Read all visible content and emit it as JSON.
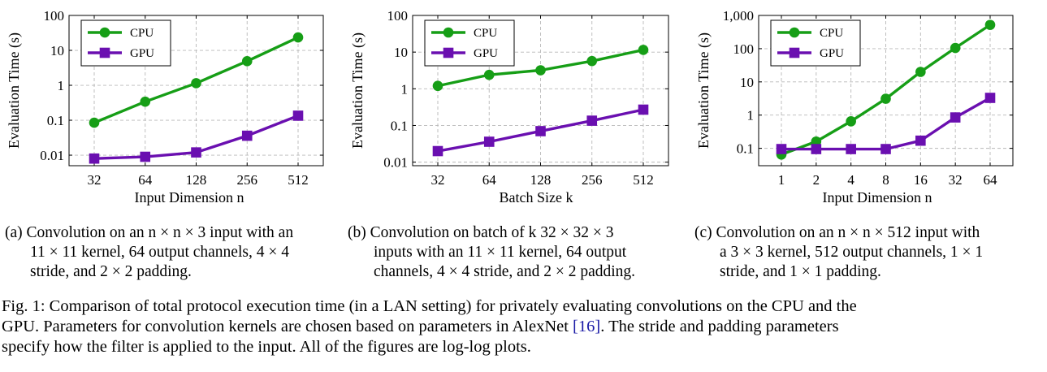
{
  "colors": {
    "cpu": "#169e16",
    "gpu": "#6a0fb0",
    "grid": "#b8b8b8"
  },
  "chart_data": [
    {
      "type": "line",
      "scale": "log-log",
      "xlabel": "Input Dimension n",
      "ylabel": "Evaluation Time (s)",
      "x": [
        32,
        64,
        128,
        256,
        512
      ],
      "x_ticks": [
        "32",
        "64",
        "128",
        "256",
        "512"
      ],
      "ylim": [
        0.005,
        100
      ],
      "y_ticks": [
        "0.01",
        "0.1",
        "1",
        "10",
        "100"
      ],
      "grid": true,
      "legend": "top-left",
      "series": [
        {
          "name": "CPU",
          "marker": "circle",
          "values": [
            0.085,
            0.34,
            1.15,
            4.9,
            23.5
          ]
        },
        {
          "name": "GPU",
          "marker": "square",
          "values": [
            0.008,
            0.009,
            0.012,
            0.036,
            0.135
          ]
        }
      ]
    },
    {
      "type": "line",
      "scale": "log-log",
      "xlabel": "Batch Size k",
      "ylabel": "Evaluation Time (s)",
      "x": [
        32,
        64,
        128,
        256,
        512
      ],
      "x_ticks": [
        "32",
        "64",
        "128",
        "256",
        "512"
      ],
      "ylim": [
        0.008,
        100
      ],
      "y_ticks": [
        "0.01",
        "0.1",
        "1",
        "10",
        "100"
      ],
      "grid": true,
      "legend": "top-left",
      "series": [
        {
          "name": "CPU",
          "marker": "circle",
          "values": [
            1.2,
            2.4,
            3.2,
            5.7,
            11.5
          ]
        },
        {
          "name": "GPU",
          "marker": "square",
          "values": [
            0.02,
            0.036,
            0.07,
            0.135,
            0.27
          ]
        }
      ]
    },
    {
      "type": "line",
      "scale": "log-log",
      "xlabel": "Input Dimension n",
      "ylabel": "Evaluation Time (s)",
      "x": [
        1,
        2,
        4,
        8,
        16,
        32,
        64
      ],
      "x_ticks": [
        "1",
        "2",
        "4",
        "8",
        "16",
        "32",
        "64"
      ],
      "ylim": [
        0.03,
        1000
      ],
      "y_ticks": [
        "0.1",
        "1",
        "10",
        "100",
        "1,000"
      ],
      "grid": true,
      "legend": "top-left",
      "series": [
        {
          "name": "CPU",
          "marker": "circle",
          "values": [
            0.065,
            0.16,
            0.65,
            3.1,
            20,
            105,
            520
          ]
        },
        {
          "name": "GPU",
          "marker": "square",
          "values": [
            0.095,
            0.095,
            0.095,
            0.095,
            0.17,
            0.85,
            3.3
          ]
        }
      ]
    }
  ],
  "subcaptions": [
    {
      "lines": [
        "(a) Convolution on an n × n × 3 input with an",
        "11 × 11 kernel, 64 output channels, 4 × 4",
        "stride, and 2 × 2 padding."
      ]
    },
    {
      "lines": [
        "(b) Convolution on batch of  k  32 × 32 × 3",
        "inputs with an 11 × 11 kernel, 64 output",
        "channels, 4 × 4 stride, and 2 × 2 padding."
      ]
    },
    {
      "lines": [
        "(c) Convolution on an n × n × 512 input with",
        "a 3 × 3 kernel, 512 output channels, 1 × 1",
        "stride, and 1 × 1 padding."
      ]
    }
  ],
  "figure_caption": {
    "line1": "Fig. 1: Comparison of total protocol execution time (in a LAN setting) for privately evaluating convolutions on the CPU and the",
    "line2_before_ref": "GPU. Parameters for convolution kernels are chosen based on parameters in AlexNet ",
    "line2_ref": "[16]",
    "line2_after_ref": ". The stride and padding parameters",
    "line3": "specify how the filter is applied to the input. All of the figures are log-log plots."
  }
}
